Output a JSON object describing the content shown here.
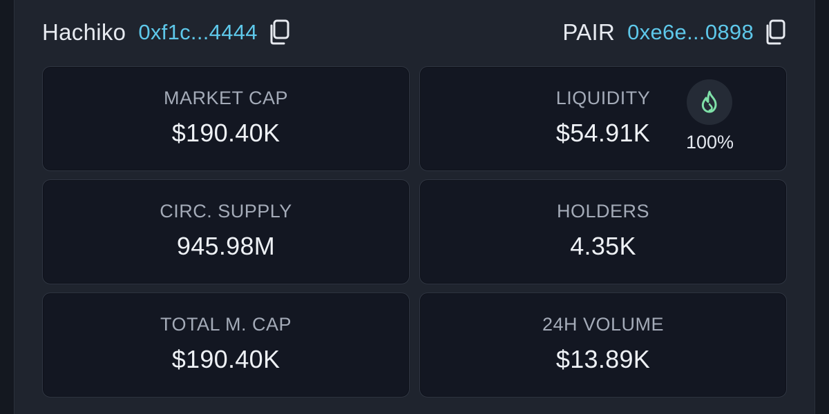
{
  "header": {
    "token_name": "Hachiko",
    "token_address": "0xf1c...4444",
    "pair_label": "PAIR",
    "pair_address": "0xe6e...0898"
  },
  "colors": {
    "address": "#5ec8ea",
    "flame": "#7fe0a8",
    "card_bg": "#131722",
    "panel_bg": "#1f242e"
  },
  "stats": {
    "market_cap": {
      "label": "MARKET CAP",
      "value": "$190.40K"
    },
    "liquidity": {
      "label": "LIQUIDITY",
      "value": "$54.91K",
      "locked_pct": "100%",
      "icon": "flame-icon"
    },
    "circ_supply": {
      "label": "CIRC. SUPPLY",
      "value": "945.98M"
    },
    "holders": {
      "label": "HOLDERS",
      "value": "4.35K"
    },
    "total_mcap": {
      "label": "TOTAL M. CAP",
      "value": "$190.40K"
    },
    "volume_24h": {
      "label": "24H VOLUME",
      "value": "$13.89K"
    }
  }
}
